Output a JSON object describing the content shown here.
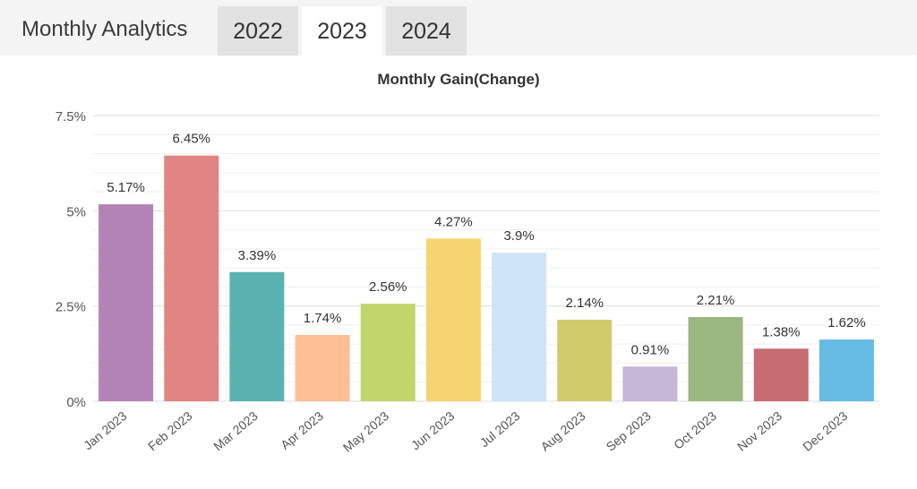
{
  "header": {
    "title": "Monthly Analytics",
    "tabs": [
      {
        "label": "2022",
        "active": false
      },
      {
        "label": "2023",
        "active": true
      },
      {
        "label": "2024",
        "active": false
      }
    ]
  },
  "chart_data": {
    "type": "bar",
    "title": "Monthly Gain(Change)",
    "xlabel": "",
    "ylabel": "",
    "categories": [
      "Jan 2023",
      "Feb 2023",
      "Mar 2023",
      "Apr 2023",
      "May 2023",
      "Jun 2023",
      "Jul 2023",
      "Aug 2023",
      "Sep 2023",
      "Oct 2023",
      "Nov 2023",
      "Dec 2023"
    ],
    "values": [
      5.17,
      6.45,
      3.39,
      1.74,
      2.56,
      4.27,
      3.9,
      2.14,
      0.91,
      2.21,
      1.38,
      1.62
    ],
    "value_labels": [
      "5.17%",
      "6.45%",
      "3.39%",
      "1.74%",
      "2.56%",
      "4.27%",
      "3.9%",
      "2.14%",
      "0.91%",
      "2.21%",
      "1.38%",
      "1.62%"
    ],
    "colors": [
      "#b483b5",
      "#e08583",
      "#5ab3b0",
      "#fdbf93",
      "#bfd66d",
      "#f6d470",
      "#cfe4f6",
      "#d2cb6c",
      "#c6b6d8",
      "#9ab77f",
      "#c76c71",
      "#66bbe4"
    ],
    "ylim": [
      0,
      7.5
    ],
    "yticks": [
      0,
      2.5,
      5,
      7.5
    ],
    "ytick_labels": [
      "0%",
      "2.5%",
      "5%",
      "7.5%"
    ],
    "grid": true,
    "legend": "none"
  }
}
